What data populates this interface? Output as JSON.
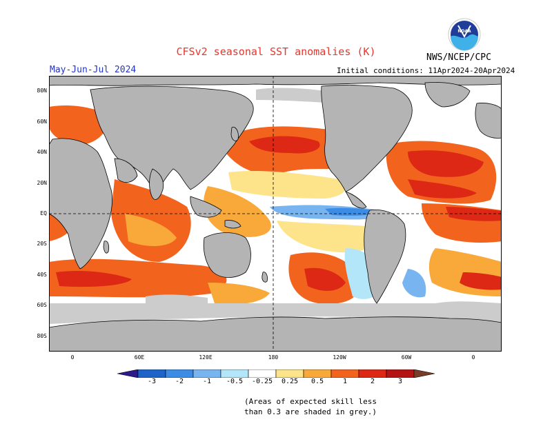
{
  "header": {
    "title": "CFSv2 seasonal SST anomalies (K)",
    "season": "May-Jun-Jul 2024",
    "initial_conditions": "Initial conditions: 11Apr2024-20Apr2024",
    "org": "NWS/NCEP/CPC",
    "logo_text": "NOAA"
  },
  "axes": {
    "lat_labels": [
      "80N",
      "60N",
      "40N",
      "20N",
      "EQ",
      "20S",
      "40S",
      "60S",
      "80S"
    ],
    "lon_labels": [
      "0",
      "60E",
      "120E",
      "180",
      "120W",
      "60W",
      "0"
    ]
  },
  "colorbar": {
    "labels": [
      "-3",
      "-2",
      "-1",
      "-0.5",
      "-0.25",
      "0.25",
      "0.5",
      "1",
      "2",
      "3"
    ],
    "colors": [
      "#2a1a8a",
      "#1e64c8",
      "#3c8ce6",
      "#78b4f0",
      "#b4e6fa",
      "#ffffff",
      "#fde38a",
      "#f9a93a",
      "#f2641e",
      "#dc2814",
      "#b41414",
      "#7a3c28"
    ]
  },
  "note": {
    "line1": "(Areas of expected skill less",
    "line2": "than 0.3 are shaded in grey.)"
  },
  "map_colors": {
    "land": "#b4b4b4",
    "low_skill": "#cccccc"
  }
}
